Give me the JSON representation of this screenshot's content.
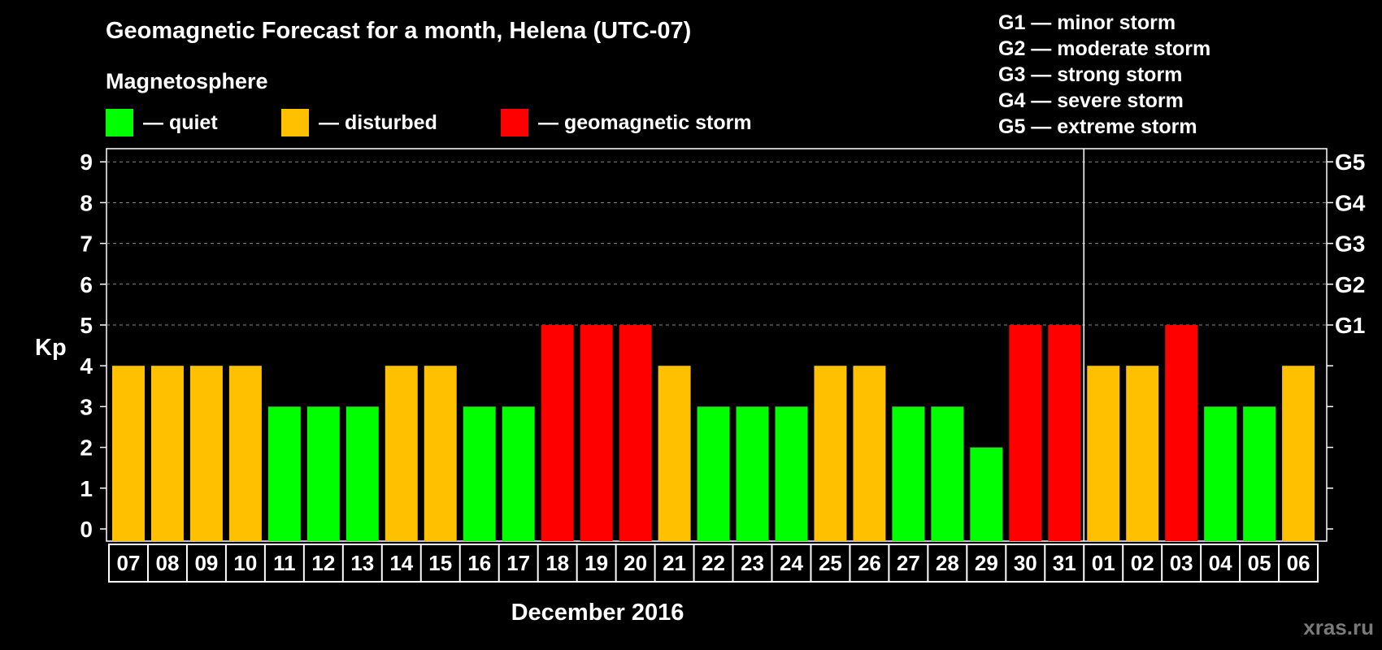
{
  "title": "Geomagnetic Forecast for a month, Helena (UTC-07)",
  "legend": {
    "heading": "Magnetosphere",
    "items": [
      {
        "label": "— quiet",
        "color": "#00ff00"
      },
      {
        "label": "— disturbed",
        "color": "#ffc000"
      },
      {
        "label": "— geomagnetic storm",
        "color": "#ff0000"
      }
    ]
  },
  "g_scale": [
    "G1 — minor storm",
    "G2 — moderate storm",
    "G3 — strong storm",
    "G4 — severe storm",
    "G5 — extreme storm"
  ],
  "watermark": "xras.ru",
  "chart_data": {
    "type": "bar",
    "title": "Geomagnetic Forecast for a month, Helena (UTC-07)",
    "xlabel": "December 2016",
    "ylabel": "Kp",
    "ylim": [
      0,
      9
    ],
    "yticks": [
      0,
      1,
      2,
      3,
      4,
      5,
      6,
      7,
      8,
      9
    ],
    "right_axis": [
      {
        "kp": 5,
        "label": "G1"
      },
      {
        "kp": 6,
        "label": "G2"
      },
      {
        "kp": 7,
        "label": "G3"
      },
      {
        "kp": 8,
        "label": "G4"
      },
      {
        "kp": 9,
        "label": "G5"
      }
    ],
    "grid_from": 5,
    "month_divider_after": "31",
    "categories": [
      "07",
      "08",
      "09",
      "10",
      "11",
      "12",
      "13",
      "14",
      "15",
      "16",
      "17",
      "18",
      "19",
      "20",
      "21",
      "22",
      "23",
      "24",
      "25",
      "26",
      "27",
      "28",
      "29",
      "30",
      "31",
      "01",
      "02",
      "03",
      "04",
      "05",
      "06"
    ],
    "values": [
      4,
      4,
      4,
      4,
      3,
      3,
      3,
      4,
      4,
      3,
      3,
      5,
      5,
      5,
      4,
      3,
      3,
      3,
      4,
      4,
      3,
      3,
      2,
      5,
      5,
      4,
      4,
      5,
      3,
      3,
      4
    ],
    "colors": {
      "quiet": "#00ff00",
      "disturbed": "#ffc000",
      "storm": "#ff0000"
    }
  }
}
